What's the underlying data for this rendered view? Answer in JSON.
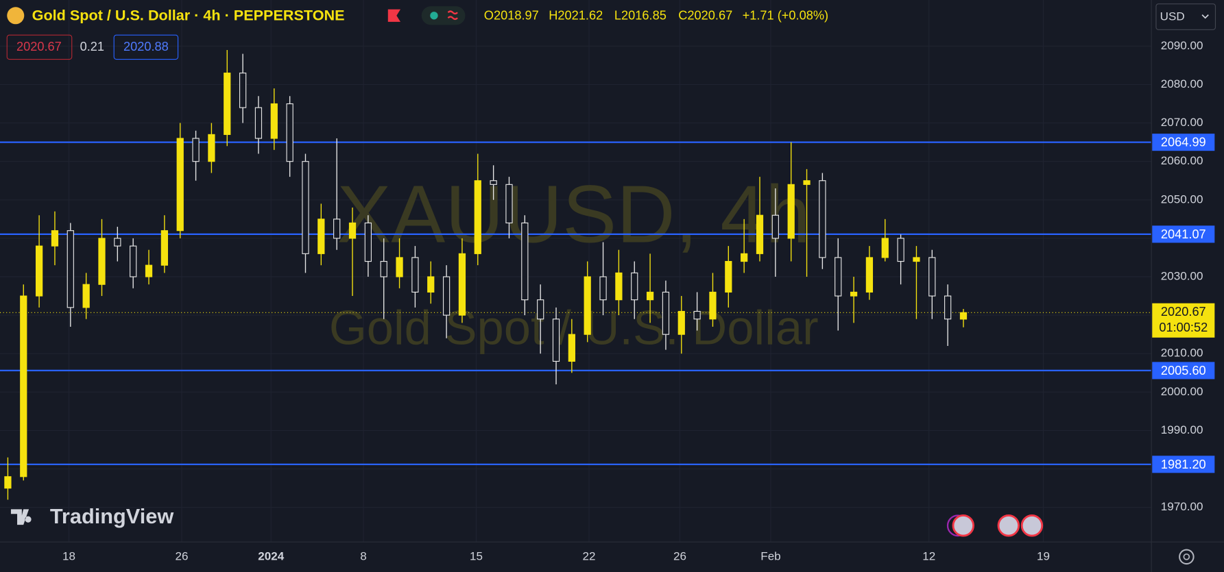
{
  "header": {
    "symbol": "Gold Spot / U.S. Dollar · 4h · PEPPERSTONE",
    "ohlc": [
      "O2018.97",
      "H2021.62",
      "L2016.85",
      "C2020.67"
    ],
    "change": "+1.71 (+0.08%)",
    "bid": "2020.67",
    "spread": "0.21",
    "ask": "2020.88",
    "currency": "USD",
    "watermark": [
      "XAUUSD, 4h",
      "Gold Spot / U.S. Dollar"
    ],
    "brand": "TradingView"
  },
  "chart_data": {
    "type": "candlestick",
    "up_color": "#f5e20f",
    "down_color": "#e6e6e6",
    "open": [
      1975,
      1978,
      2025,
      2038,
      2042,
      2022,
      2028,
      2040,
      2038,
      2030,
      2033,
      2042,
      2066,
      2060,
      2067,
      2083,
      2074,
      2066,
      2075,
      2060,
      2036,
      2045,
      2040,
      2044,
      2034,
      2030,
      2035,
      2026,
      2030,
      2020,
      2036,
      2055,
      2054,
      2044,
      2024,
      2019,
      2008,
      2015,
      2030,
      2024,
      2031,
      2024,
      2026,
      2015,
      2021,
      2019,
      2026,
      2034,
      2036,
      2046,
      2040,
      2054,
      2055,
      2035,
      2025,
      2026,
      2035,
      2040,
      2034,
      2035,
      2025,
      2018.97
    ],
    "high": [
      1983,
      2028,
      2046,
      2047,
      2044,
      2031,
      2045,
      2043,
      2040,
      2037,
      2046,
      2070,
      2068,
      2070,
      2089,
      2088,
      2077,
      2079,
      2077,
      2062,
      2049,
      2066,
      2048,
      2046,
      2040,
      2040,
      2038,
      2034,
      2033,
      2040,
      2062,
      2059,
      2056,
      2046,
      2028,
      2022,
      2019,
      2034,
      2039,
      2037,
      2034,
      2036,
      2029,
      2025,
      2026,
      2031,
      2038,
      2045,
      2056,
      2053,
      2065,
      2058,
      2057,
      2040,
      2030,
      2038,
      2045,
      2041,
      2038,
      2037,
      2028,
      2021.62
    ],
    "low": [
      1972,
      1977,
      2022,
      2033,
      2017,
      2019,
      2025,
      2034,
      2027,
      2028,
      2031,
      2040,
      2055,
      2057,
      2064,
      2070,
      2062,
      2063,
      2056,
      2031,
      2033,
      2037,
      2025,
      2030,
      2019,
      2027,
      2022,
      2023,
      2014,
      2018,
      2033,
      2050,
      2040,
      2020,
      2010,
      2002,
      2005,
      2013,
      2020,
      2020,
      2019,
      2018,
      2011,
      2010,
      2016,
      2017,
      2022,
      2031,
      2034,
      2030,
      2034,
      2030,
      2032,
      2016,
      2018,
      2024,
      2034,
      2028,
      2019,
      2019,
      2012,
      2016.85
    ],
    "close": [
      1978,
      2025,
      2038,
      2042,
      2022,
      2028,
      2040,
      2038,
      2030,
      2033,
      2042,
      2066,
      2060,
      2067,
      2083,
      2074,
      2066,
      2075,
      2060,
      2036,
      2045,
      2040,
      2044,
      2034,
      2030,
      2035,
      2026,
      2030,
      2020,
      2036,
      2055,
      2054,
      2044,
      2024,
      2019,
      2008,
      2015,
      2030,
      2024,
      2031,
      2024,
      2026,
      2015,
      2021,
      2019,
      2026,
      2034,
      2036,
      2046,
      2040,
      2054,
      2055,
      2035,
      2025,
      2026,
      2035,
      2040,
      2034,
      2035,
      2025,
      2019,
      2020.67
    ],
    "xlim": [
      -0.5,
      73
    ],
    "xticks": [
      {
        "value": 3.9,
        "label": "18"
      },
      {
        "value": 11.1,
        "label": "26"
      },
      {
        "value": 16.8,
        "label": "2024"
      },
      {
        "value": 22.7,
        "label": "8"
      },
      {
        "value": 29.9,
        "label": "15"
      },
      {
        "value": 37.1,
        "label": "22"
      },
      {
        "value": 42.9,
        "label": "26"
      },
      {
        "value": 48.7,
        "label": "Feb"
      },
      {
        "value": 58.8,
        "label": "12"
      },
      {
        "value": 66.1,
        "label": "19"
      }
    ],
    "ylim": [
      1961,
      2102
    ],
    "yticks": [
      {
        "value": 1970,
        "label": "1970.00"
      },
      {
        "value": 1980,
        "label": "1980.00"
      },
      {
        "value": 1990,
        "label": "1990.00"
      },
      {
        "value": 2000,
        "label": "2000.00"
      },
      {
        "value": 2010,
        "label": "2010.00"
      },
      {
        "value": 2020,
        "label": "2020.00"
      },
      {
        "value": 2030,
        "label": "2030.00"
      },
      {
        "value": 2040,
        "label": "2040.00"
      },
      {
        "value": 2050,
        "label": "2050.00"
      },
      {
        "value": 2060,
        "label": "2060.00"
      },
      {
        "value": 2070,
        "label": "2070.00"
      },
      {
        "value": 2080,
        "label": "2080.00"
      },
      {
        "value": 2090,
        "label": "2090.00"
      }
    ],
    "grid": true,
    "levels": [
      {
        "value": 2064.99,
        "label": "2064.99"
      },
      {
        "value": 2041.07,
        "label": "2041.07"
      },
      {
        "value": 2005.6,
        "label": "2005.60"
      },
      {
        "value": 1981.2,
        "label": "1981.20"
      }
    ],
    "level_color": "#2962ff",
    "price_line": {
      "value": 2020.67,
      "countdown": "01:00:52"
    }
  }
}
